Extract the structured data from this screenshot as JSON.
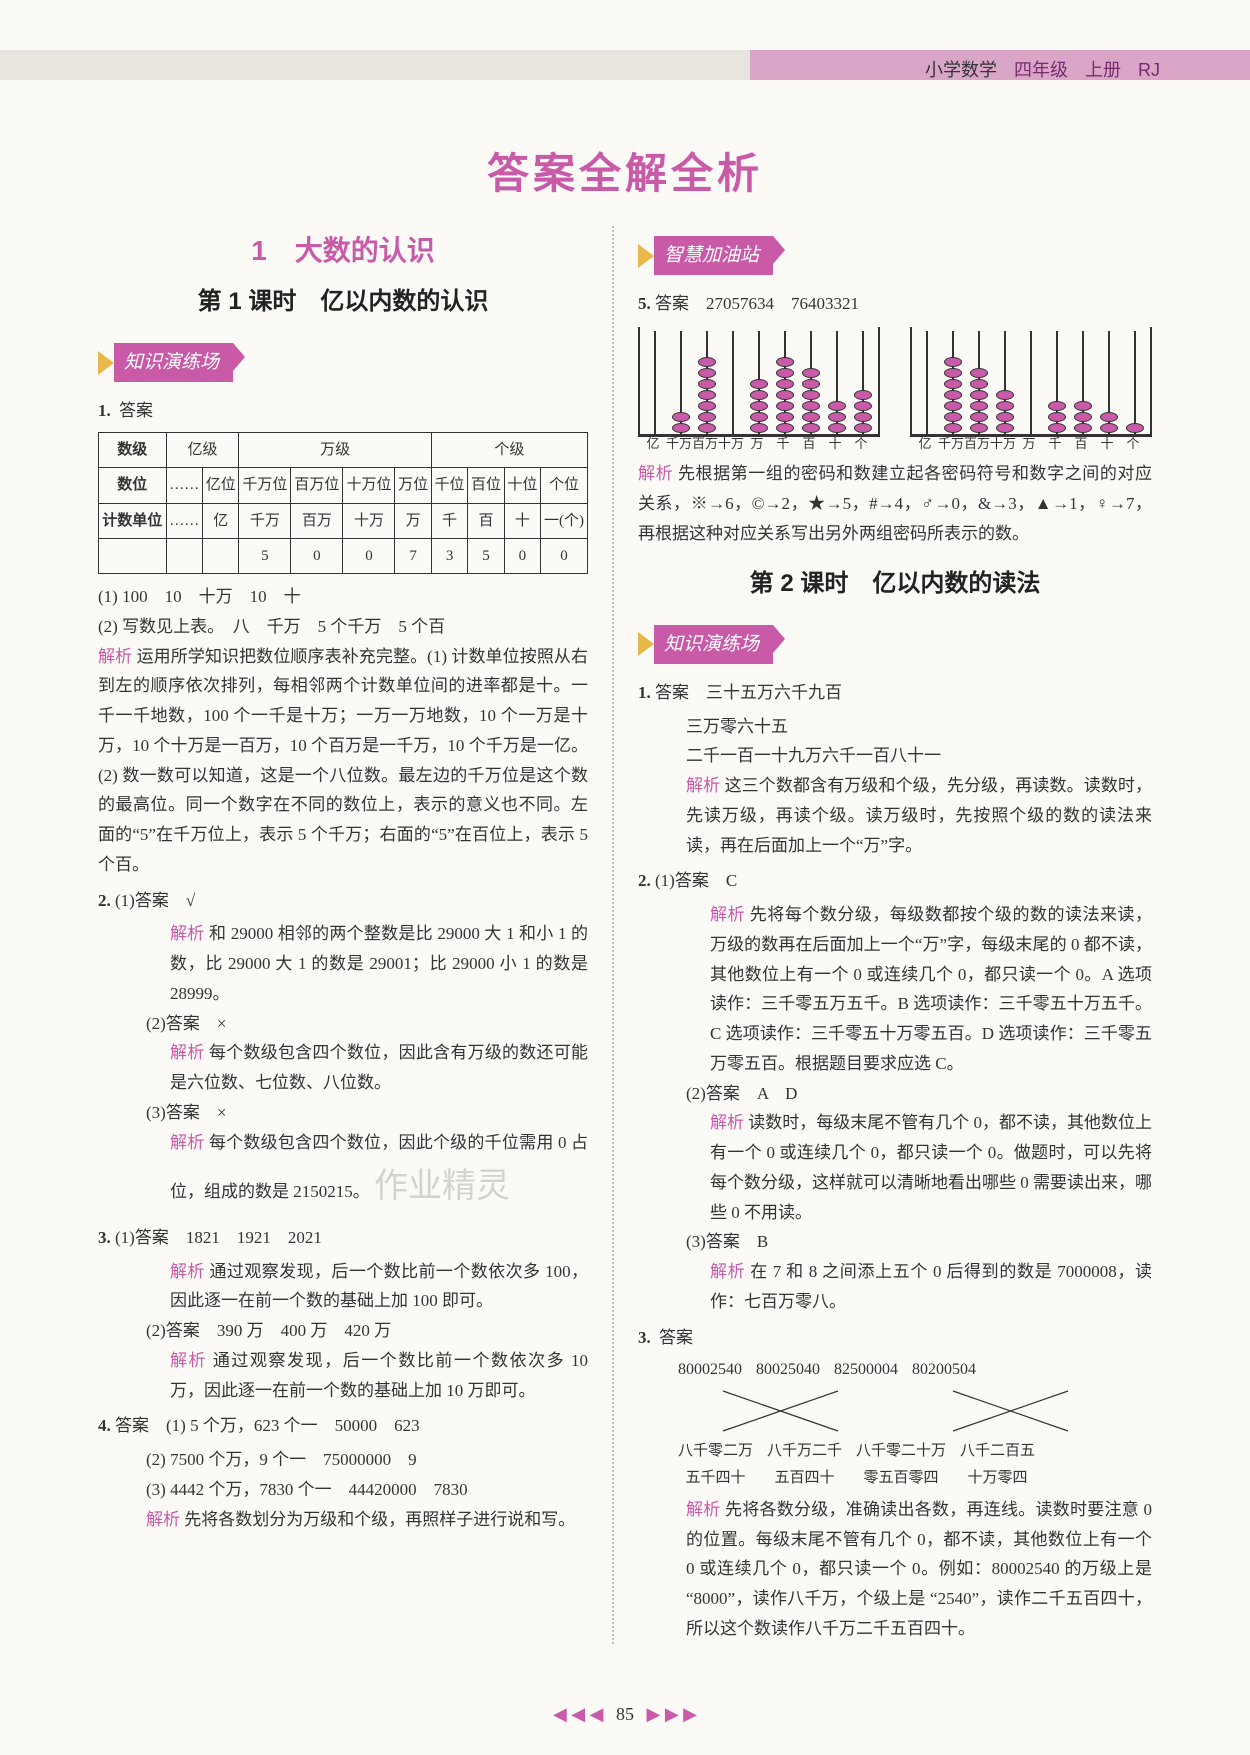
{
  "header": {
    "subject": "小学数学",
    "grade": "四年级",
    "book": "上册",
    "edition": "RJ"
  },
  "main_title": "答案全解全析",
  "unit": {
    "number": "1",
    "name": "大数的认识"
  },
  "lesson1_title": "第 1 课时　亿以内数的认识",
  "lesson2_title": "第 2 课时　亿以内数的读法",
  "section_practice": "知识演练场",
  "section_wisdom": "智慧加油站",
  "labels": {
    "answer": "答案",
    "analysis": "解析"
  },
  "pvt": {
    "row_class": "数级",
    "groups": [
      "亿级",
      "万级",
      "个级"
    ],
    "row_place": "数位",
    "row_unit": "计数单位",
    "ellipsis": "……",
    "places": [
      "亿位",
      "千万位",
      "百万位",
      "十万位",
      "万位",
      "千位",
      "百位",
      "十位",
      "个位"
    ],
    "units": [
      "亿",
      "千万",
      "百万",
      "十万",
      "万",
      "千",
      "百",
      "十",
      "一(个)"
    ],
    "number_row": [
      "",
      "5",
      "0",
      "0",
      "7",
      "3",
      "5",
      "0",
      "0"
    ]
  },
  "q1": {
    "num": "1.",
    "line1": "(1) 100　10　十万　10　十",
    "line2": "(2) 写数见上表。　八　千万　5 个千万　5 个百",
    "ana": "运用所学知识把数位顺序表补充完整。(1) 计数单位按照从右到左的顺序依次排列，每相邻两个计数单位间的进率都是十。一千一千地数，100 个一千是十万；一万一万地数，10 个一万是十万，10 个十万是一百万，10 个百万是一千万，10 个千万是一亿。(2) 数一数可以知道，这是一个八位数。最左边的千万位是这个数的最高位。同一个数字在不同的数位上，表示的意义也不同。左面的“5”在千万位上，表示 5 个千万；右面的“5”在百位上，表示 5 个百。"
  },
  "q2": {
    "num": "2.",
    "s1_ans": "(1)答案　√",
    "s1_ana": "和 29000 相邻的两个整数是比 29000 大 1 和小 1 的数，比 29000 大 1 的数是 29001；比 29000 小 1 的数是 28999。",
    "s2_ans": "(2)答案　×",
    "s2_ana": "每个数级包含四个数位，因此含有万级的数还可能是六位数、七位数、八位数。",
    "s3_ans": "(3)答案　×",
    "s3_ana": "每个数级包含四个数位，因此个级的千位需用 0 占位，组成的数是 2150215。"
  },
  "q3": {
    "num": "3.",
    "s1_ans": "(1)答案　1821　1921　2021",
    "s1_ana": "通过观察发现，后一个数比前一个数依次多 100，因此逐一在前一个数的基础上加 100 即可。",
    "s2_ans": "(2)答案　390 万　400 万　420 万",
    "s2_ana": "通过观察发现，后一个数比前一个数依次多 10 万，因此逐一在前一个数的基础上加 10 万即可。"
  },
  "q4": {
    "num": "4.",
    "line1": "答案　(1) 5 个万，623 个一　50000　623",
    "line2": "(2) 7500 个万，9 个一　75000000　9",
    "line3": "(3) 4442 个万，7830 个一　44420000　7830",
    "ana": "先将各数划分为万级和个级，再照样子进行说和写。"
  },
  "q5": {
    "num": "5.",
    "ans": "答案　27057634　76403321",
    "abacus_labels": [
      "亿",
      "千万",
      "百万",
      "十万",
      "万",
      "千",
      "百",
      "十",
      "个"
    ],
    "a1": [
      2,
      7,
      0,
      5,
      7,
      6,
      3,
      4
    ],
    "a2": [
      7,
      6,
      4,
      0,
      3,
      3,
      2,
      1
    ],
    "ana": "先根据第一组的密码和数建立起各密码符号和数字之间的对应关系，※→6，©→2，★→5，#→4，♂→0，&→3，▲→1，♀→7，再根据这种对应关系写出另外两组密码所表示的数。"
  },
  "r_q1": {
    "num": "1.",
    "ans": "答案　三十五万六千九百",
    "l2": "三万零六十五",
    "l3": "二千一百一十九万六千一百八十一",
    "ana": "这三个数都含有万级和个级，先分级，再读数。读数时，先读万级，再读个级。读万级时，先按照个级的数的读法来读，再在后面加上一个“万”字。"
  },
  "r_q2": {
    "num": "2.",
    "s1_ans": "(1)答案　C",
    "s1_ana": "先将每个数分级，每级数都按个级的数的读法来读，万级的数再在后面加上一个“万”字，每级末尾的 0 都不读，其他数位上有一个 0 或连续几个 0，都只读一个 0。A 选项读作：三千零五万五千。B 选项读作：三千零五十万五千。C 选项读作：三千零五十万零五百。D 选项读作：三千零五万零五百。根据题目要求应选 C。",
    "s2_ans": "(2)答案　A　D",
    "s2_ana": "读数时，每级末尾不管有几个 0，都不读，其他数位上有一个 0 或连续几个 0，都只读一个 0。做题时，可以先将每个数分级，这样就可以清晰地看出哪些 0 需要读出来，哪些 0 不用读。",
    "s3_ans": "(3)答案　B",
    "s3_ana": "在 7 和 8 之间添上五个 0 后得到的数是 7000008，读作：七百万零八。"
  },
  "r_q3": {
    "num": "3.",
    "ans_label": "答案",
    "top": [
      "80002540",
      "80025040",
      "82500004",
      "80200504"
    ],
    "bottom": [
      "八千零二万\n五千四十",
      "八千万二千\n五百四十",
      "八千零二十万\n零五百零四",
      "八千二百五\n十万零四"
    ],
    "ana": "先将各数分级，准确读出各数，再连线。读数时要注意 0 的位置。每级末尾不管有几个 0，都不读，其他数位上有一个 0 或连续几个 0，都只读一个 0。例如：80002540 的万级上是 “8000”，读作八千万，个级上是 “2540”，读作二千五百四十，所以这个数读作八千万二千五百四十。"
  },
  "page_number": "85",
  "watermarks": {
    "w1": "作业",
    "w2": "作业精灵"
  }
}
